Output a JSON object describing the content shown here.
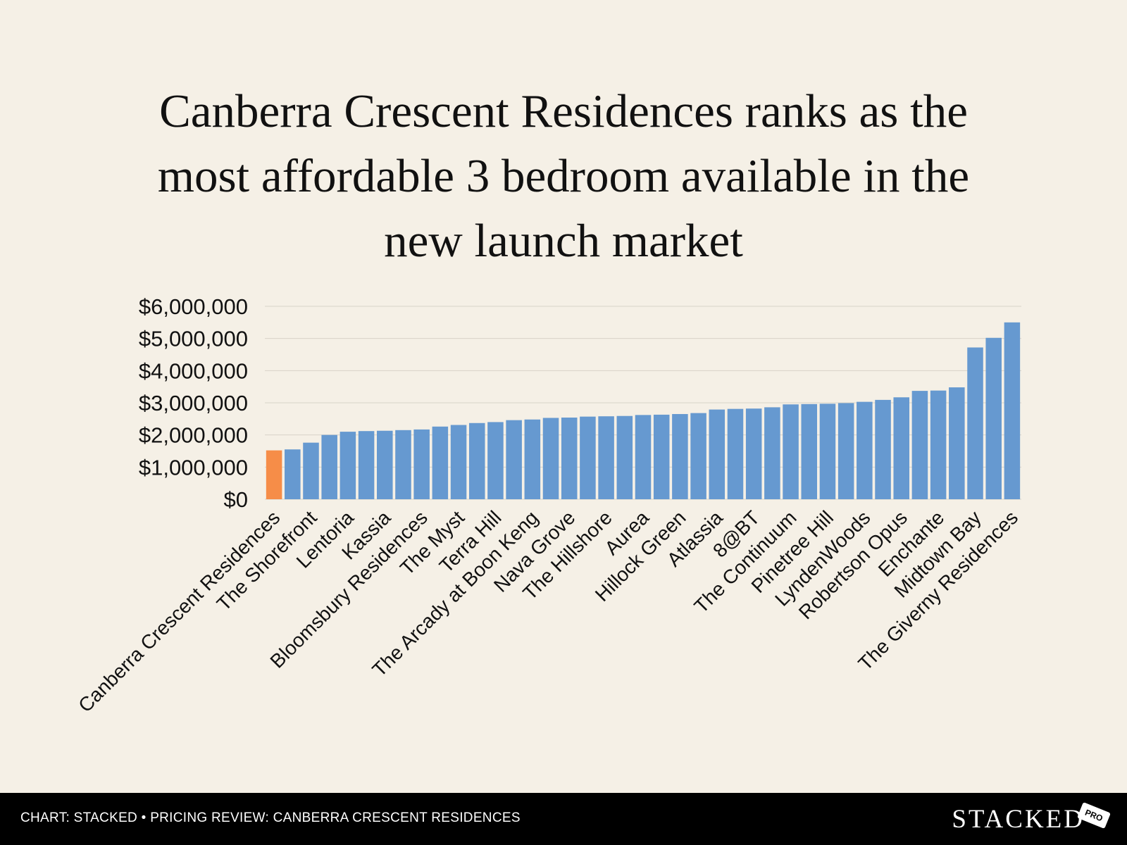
{
  "title_lines": [
    "Canberra Crescent Residences ranks as the",
    "most affordable 3 bedroom available in the",
    "new launch market"
  ],
  "chart_data": {
    "type": "bar",
    "title": "Canberra Crescent Residences ranks as the most affordable 3 bedroom available in the new launch market",
    "xlabel": "",
    "ylabel": "",
    "ylim": [
      0,
      6000000
    ],
    "yticks": [
      0,
      1000000,
      2000000,
      3000000,
      4000000,
      5000000,
      6000000
    ],
    "ytick_labels": [
      "$0",
      "$1,000,000",
      "$2,000,000",
      "$3,000,000",
      "$4,000,000",
      "$5,000,000",
      "$6,000,000"
    ],
    "grid": true,
    "highlight_color": "#f68d48",
    "bar_color": "#6699d0",
    "highlight_index": 0,
    "categories": [
      "Canberra Crescent Residences",
      "",
      "The Shorefront",
      "",
      "Lentoria",
      "",
      "Kassia",
      "",
      "Bloomsbury Residences",
      "",
      "The Myst",
      "",
      "Terra Hill",
      "",
      "The Arcady at Boon Keng",
      "",
      "Nava Grove",
      "",
      "The Hillshore",
      "",
      "Aurea",
      "",
      "Hillock Green",
      "",
      "Atlassia",
      "",
      "8@BT",
      "",
      "The Continuum",
      "",
      "Pinetree Hill",
      "",
      "LyndenWoods",
      "",
      "Robertson Opus",
      "",
      "Enchante",
      "",
      "Midtown Bay",
      "",
      "The Giverny Residences"
    ],
    "values": [
      1520000,
      1550000,
      1760000,
      2000000,
      2100000,
      2120000,
      2130000,
      2150000,
      2170000,
      2260000,
      2310000,
      2370000,
      2400000,
      2460000,
      2480000,
      2530000,
      2540000,
      2570000,
      2580000,
      2590000,
      2620000,
      2630000,
      2650000,
      2680000,
      2790000,
      2810000,
      2820000,
      2860000,
      2950000,
      2960000,
      2970000,
      2990000,
      3030000,
      3090000,
      3170000,
      3370000,
      3380000,
      3480000,
      4720000,
      5020000,
      5500000
    ]
  },
  "footer": {
    "caption": "CHART: STACKED • PRICING REVIEW: CANBERRA CRESCENT RESIDENCES",
    "logo": "STACKED",
    "badge": "PRO"
  },
  "colors": {
    "background": "#f5f0e6",
    "footer_bg": "#000000",
    "gridline": "#d8d3c8"
  }
}
